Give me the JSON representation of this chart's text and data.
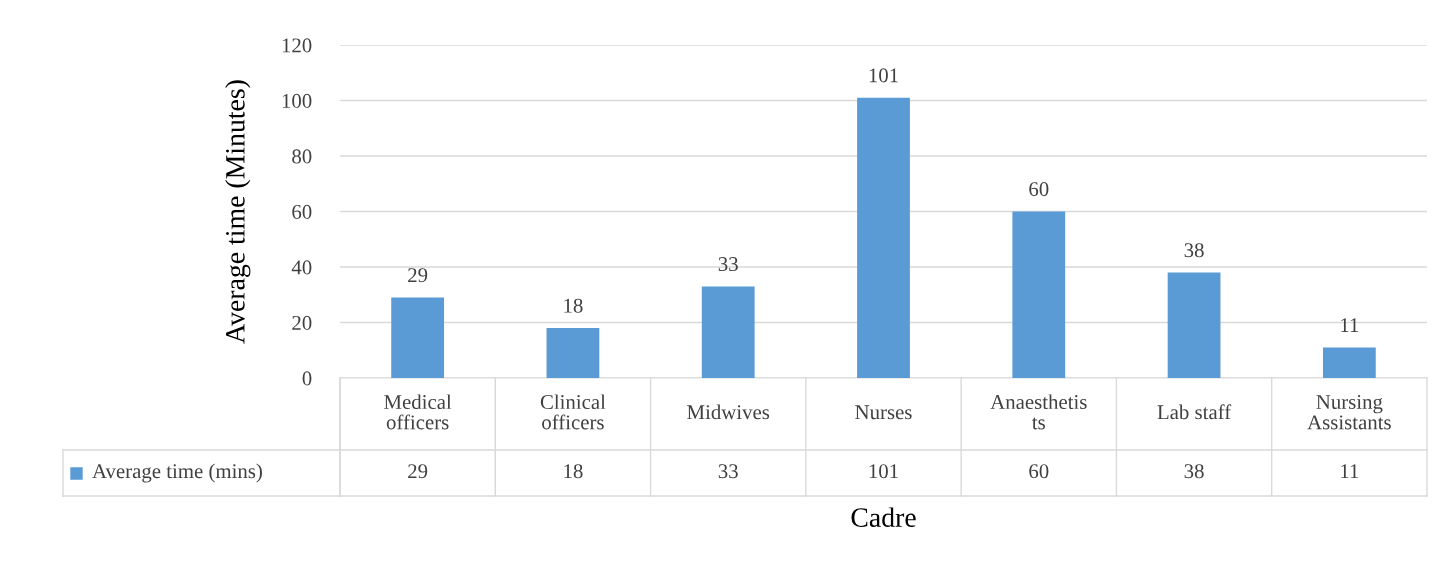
{
  "chart_data": {
    "type": "bar",
    "categories": [
      "Medical officers",
      "Clinical officers",
      "Midwives",
      "Nurses",
      "Anaesthetists",
      "Lab staff",
      "Nursing Assistants"
    ],
    "series": [
      {
        "name": "Average time (mins)",
        "color": "#5b9bd5",
        "values": [
          29,
          18,
          33,
          101,
          60,
          38,
          11
        ],
        "value_labels": [
          "29",
          "18",
          "33",
          "101",
          "60",
          "38",
          "11"
        ]
      }
    ],
    "xlabel": "Cadre",
    "ylabel": "Average time (Minutes)",
    "ylim": [
      0,
      120
    ],
    "yticks": [
      0,
      20,
      40,
      60,
      80,
      100,
      120
    ],
    "annotations": [
      "29",
      "18",
      "33",
      "101",
      "60",
      "38",
      "11"
    ],
    "grid": "y",
    "legend": "bottom"
  }
}
